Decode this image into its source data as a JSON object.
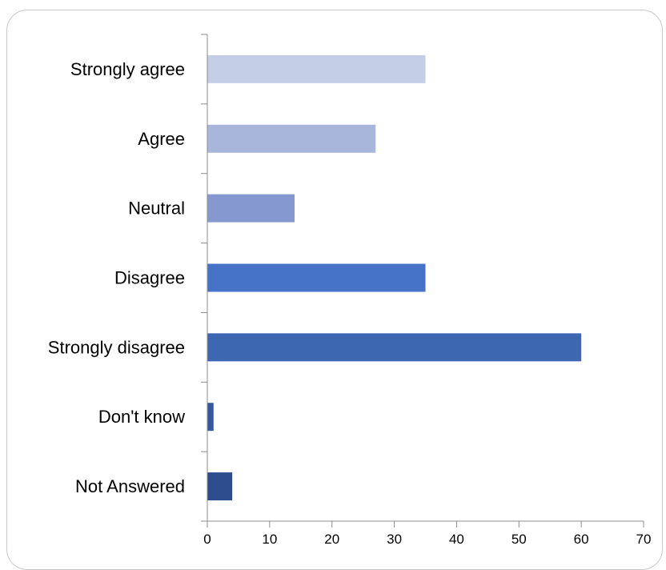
{
  "chart_data": {
    "type": "bar",
    "orientation": "horizontal",
    "categories": [
      "Strongly agree",
      "Agree",
      "Neutral",
      "Disagree",
      "Strongly disagree",
      "Don't know",
      "Not Answered"
    ],
    "values": [
      35,
      27,
      14,
      35,
      60,
      1,
      4
    ],
    "colors": [
      "#C5CEE7",
      "#A8B6DC",
      "#8599D0",
      "#4672C8",
      "#3E67B1",
      "#3558A0",
      "#2E4D8C"
    ],
    "xlim": [
      0,
      70
    ],
    "xticks": [
      0,
      10,
      20,
      30,
      40,
      50,
      60,
      70
    ],
    "xtick_labels": [
      "0",
      "10",
      "20",
      "30",
      "40",
      "50",
      "60",
      "70"
    ],
    "grid": false,
    "legend": "none"
  }
}
